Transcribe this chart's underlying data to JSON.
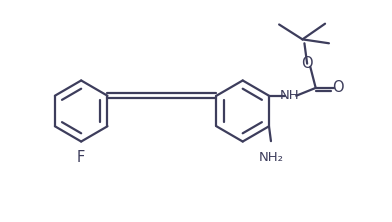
{
  "bg_color": "#ffffff",
  "line_color": "#3d3d5c",
  "line_width": 1.6,
  "font_size": 9.5,
  "fig_width": 3.92,
  "fig_height": 2.22,
  "dpi": 100,
  "xlim": [
    0,
    10
  ],
  "ylim": [
    0,
    5.6
  ]
}
